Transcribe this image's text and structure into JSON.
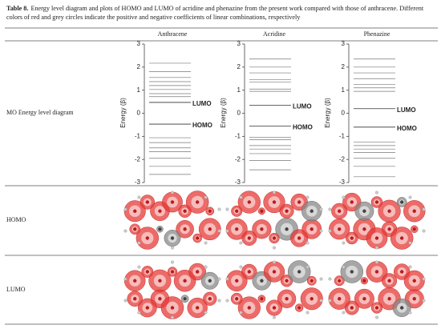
{
  "caption": {
    "label": "Table 8.",
    "text": "Energy level diagram and plots of HOMO and LUMO of acridine and phenazine from the present work compared with those of anthracene. Different colors of red and grey circles indicate the positive and negative coefficients of linear combinations, respectively"
  },
  "columns": [
    "Anthracene",
    "Acridine",
    "Phenazine"
  ],
  "rows": [
    {
      "label": "MO Energy level diagram"
    },
    {
      "label": "HOMO"
    },
    {
      "label": "LUMO"
    }
  ],
  "energy_diagrams": {
    "axis_label": "Energy (β)",
    "ylim": [
      -3,
      3
    ],
    "yticks": [
      -3,
      -2,
      -1,
      0,
      1,
      2,
      3
    ],
    "lumo_label": "LUMO",
    "homo_label": "HOMO",
    "molecules": [
      {
        "levels": [
          2.17,
          1.8,
          1.55,
          1.37,
          1.2,
          1.03,
          0.85,
          0.72,
          -1.06,
          -1.27,
          -1.5,
          -1.67,
          -1.95,
          -2.3,
          -2.65
        ],
        "lumo": 0.47,
        "homo": -0.47
      },
      {
        "levels": [
          2.35,
          2.0,
          1.75,
          1.45,
          1.35,
          1.05,
          0.95,
          -1.05,
          -1.15,
          -1.4,
          -1.55,
          -1.75,
          -2.05,
          -2.45
        ],
        "lumo": 0.35,
        "homo": -0.55
      },
      {
        "levels": [
          2.35,
          2.0,
          1.75,
          1.5,
          1.25,
          1.1,
          0.95,
          -1.25,
          -1.4,
          -1.55,
          -1.7,
          -1.95,
          -2.3,
          -2.75
        ],
        "lumo": 0.2,
        "homo": -0.6
      }
    ]
  }
}
